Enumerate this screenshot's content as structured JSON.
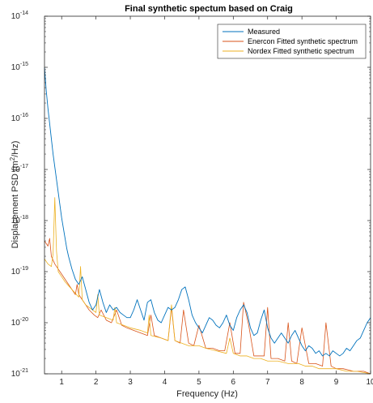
{
  "chart_data": {
    "type": "line",
    "title": "Final synthetic spectum based on Craig",
    "xlabel": "Frequency (Hz)",
    "ylabel": "Displacement PSD (m²/Hz)",
    "ylabel_parts": {
      "main": "Displacement PSD (m",
      "sup": "2",
      "tail": "/Hz)"
    },
    "x_scale": "linear",
    "y_scale": "log",
    "xlim": [
      0.5,
      10
    ],
    "ylim_exp": [
      -21,
      -14
    ],
    "x_ticks": [
      1,
      2,
      3,
      4,
      5,
      6,
      7,
      8,
      9,
      10
    ],
    "x_tick_labels": [
      "1",
      "2",
      "3",
      "4",
      "5",
      "6",
      "7",
      "8",
      "9",
      "10"
    ],
    "y_ticks_exp": [
      -21,
      -20,
      -19,
      -18,
      -17,
      -16,
      -15,
      -14
    ],
    "y_tick_base": "10",
    "y_tick_exps": [
      "-21",
      "-20",
      "-19",
      "-18",
      "-17",
      "-16",
      "-15",
      "-14"
    ],
    "grid": false,
    "legend_position": "top-right",
    "series": [
      {
        "name": "Measured",
        "color": "#0072BD",
        "x": [
          0.5,
          0.55,
          0.6,
          0.65,
          0.7,
          0.75,
          0.8,
          0.85,
          0.9,
          0.95,
          1.0,
          1.05,
          1.1,
          1.15,
          1.2,
          1.3,
          1.4,
          1.5,
          1.6,
          1.7,
          1.8,
          1.9,
          2.0,
          2.1,
          2.2,
          2.3,
          2.4,
          2.5,
          2.6,
          2.7,
          2.8,
          2.9,
          3.0,
          3.1,
          3.2,
          3.3,
          3.4,
          3.5,
          3.6,
          3.7,
          3.8,
          3.9,
          4.0,
          4.1,
          4.2,
          4.3,
          4.4,
          4.5,
          4.6,
          4.7,
          4.8,
          4.9,
          5.0,
          5.1,
          5.2,
          5.3,
          5.4,
          5.5,
          5.6,
          5.7,
          5.8,
          5.9,
          6.0,
          6.1,
          6.2,
          6.3,
          6.4,
          6.5,
          6.6,
          6.7,
          6.8,
          6.9,
          7.0,
          7.1,
          7.2,
          7.3,
          7.4,
          7.5,
          7.6,
          7.7,
          7.8,
          7.9,
          8.0,
          8.1,
          8.2,
          8.3,
          8.4,
          8.5,
          8.6,
          8.7,
          8.8,
          8.9,
          9.0,
          9.1,
          9.2,
          9.3,
          9.4,
          9.5,
          9.6,
          9.7,
          9.8,
          9.9,
          10.0
        ],
        "y_exp": [
          -15.0,
          -15.45,
          -15.8,
          -16.1,
          -16.4,
          -16.7,
          -16.95,
          -17.2,
          -17.45,
          -17.7,
          -17.95,
          -18.15,
          -18.35,
          -18.55,
          -18.7,
          -18.95,
          -19.15,
          -19.25,
          -19.1,
          -19.35,
          -19.6,
          -19.75,
          -19.65,
          -19.35,
          -19.6,
          -19.8,
          -19.65,
          -19.75,
          -19.7,
          -19.8,
          -19.85,
          -19.9,
          -19.9,
          -19.75,
          -19.55,
          -19.75,
          -19.95,
          -19.6,
          -19.55,
          -19.8,
          -19.95,
          -20.0,
          -19.85,
          -19.7,
          -19.75,
          -19.7,
          -19.55,
          -19.35,
          -19.3,
          -19.55,
          -19.85,
          -20.0,
          -20.1,
          -20.2,
          -20.05,
          -19.9,
          -19.95,
          -20.05,
          -20.1,
          -20.0,
          -19.85,
          -20.05,
          -20.15,
          -19.9,
          -19.75,
          -19.65,
          -19.8,
          -20.1,
          -20.25,
          -20.2,
          -19.95,
          -19.75,
          -20.1,
          -20.3,
          -20.4,
          -20.3,
          -20.2,
          -20.3,
          -20.4,
          -20.25,
          -20.15,
          -20.3,
          -20.45,
          -20.55,
          -20.45,
          -20.5,
          -20.6,
          -20.55,
          -20.65,
          -20.6,
          -20.65,
          -20.55,
          -20.6,
          -20.65,
          -20.6,
          -20.5,
          -20.55,
          -20.45,
          -20.35,
          -20.3,
          -20.15,
          -20.0,
          -19.9
        ]
      },
      {
        "name": "Enercon Fitted synthetic spectrum",
        "color": "#D95319",
        "x": [
          0.5,
          0.6,
          0.65,
          0.7,
          0.8,
          1.0,
          1.2,
          1.4,
          1.45,
          1.5,
          1.6,
          1.7,
          1.8,
          1.95,
          2.05,
          2.15,
          2.3,
          2.45,
          2.6,
          2.75,
          2.9,
          3.1,
          3.3,
          3.5,
          3.6,
          3.7,
          3.9,
          4.1,
          4.2,
          4.3,
          4.45,
          4.55,
          4.7,
          4.85,
          5.0,
          5.2,
          5.4,
          5.6,
          5.75,
          5.9,
          6.05,
          6.2,
          6.3,
          6.45,
          6.6,
          6.75,
          6.9,
          7.0,
          7.1,
          7.3,
          7.5,
          7.6,
          7.7,
          7.85,
          8.0,
          8.2,
          8.4,
          8.6,
          8.7,
          8.85,
          9.0,
          9.2,
          9.5,
          9.8,
          10.0
        ],
        "y_exp": [
          -18.4,
          -18.5,
          -18.35,
          -18.7,
          -18.85,
          -19.05,
          -19.25,
          -19.45,
          -19.25,
          -19.45,
          -19.55,
          -19.65,
          -19.75,
          -19.85,
          -19.9,
          -19.75,
          -19.95,
          -20.0,
          -19.75,
          -20.05,
          -20.1,
          -20.15,
          -20.2,
          -20.25,
          -19.85,
          -20.25,
          -20.3,
          -20.35,
          -19.7,
          -20.35,
          -20.4,
          -19.75,
          -20.4,
          -20.45,
          -20.05,
          -20.5,
          -20.5,
          -20.55,
          -20.55,
          -20.0,
          -20.6,
          -20.6,
          -19.6,
          -20.05,
          -20.65,
          -20.65,
          -20.65,
          -19.7,
          -20.7,
          -20.7,
          -20.75,
          -20.0,
          -20.75,
          -20.8,
          -20.1,
          -20.8,
          -20.8,
          -20.85,
          -20.0,
          -20.85,
          -20.9,
          -20.9,
          -20.95,
          -20.95,
          -21.0
        ]
      },
      {
        "name": "Nordex Fitted synthetic spectrum",
        "color": "#EDB120",
        "x": [
          0.5,
          0.6,
          0.7,
          0.75,
          0.8,
          0.85,
          0.9,
          1.0,
          1.1,
          1.3,
          1.5,
          1.55,
          1.6,
          1.7,
          1.9,
          2.0,
          2.05,
          2.1,
          2.3,
          2.5,
          2.55,
          2.6,
          2.8,
          3.0,
          3.3,
          3.5,
          3.55,
          3.6,
          3.9,
          4.1,
          4.2,
          4.3,
          4.5,
          4.7,
          5.0,
          5.2,
          5.5,
          5.8,
          5.9,
          6.0,
          6.2,
          6.4,
          6.6,
          6.8,
          7.0,
          7.3,
          7.6,
          7.9,
          8.1,
          8.3,
          8.5,
          8.8,
          9.0,
          9.3,
          9.6,
          10.0
        ],
        "y_exp": [
          -18.75,
          -18.85,
          -18.9,
          -18.65,
          -17.55,
          -18.6,
          -19.0,
          -19.1,
          -19.2,
          -19.35,
          -19.5,
          -18.9,
          -19.55,
          -19.65,
          -19.75,
          -19.8,
          -19.45,
          -19.85,
          -19.9,
          -19.95,
          -19.7,
          -20.0,
          -20.05,
          -20.1,
          -20.15,
          -20.2,
          -19.85,
          -20.25,
          -20.3,
          -20.35,
          -19.65,
          -20.35,
          -20.4,
          -20.45,
          -20.45,
          -20.5,
          -20.55,
          -20.6,
          -20.3,
          -20.6,
          -20.65,
          -20.65,
          -20.7,
          -20.7,
          -20.75,
          -20.75,
          -20.8,
          -20.8,
          -20.85,
          -20.85,
          -20.9,
          -20.9,
          -20.9,
          -20.95,
          -20.95,
          -21.0
        ]
      }
    ]
  }
}
